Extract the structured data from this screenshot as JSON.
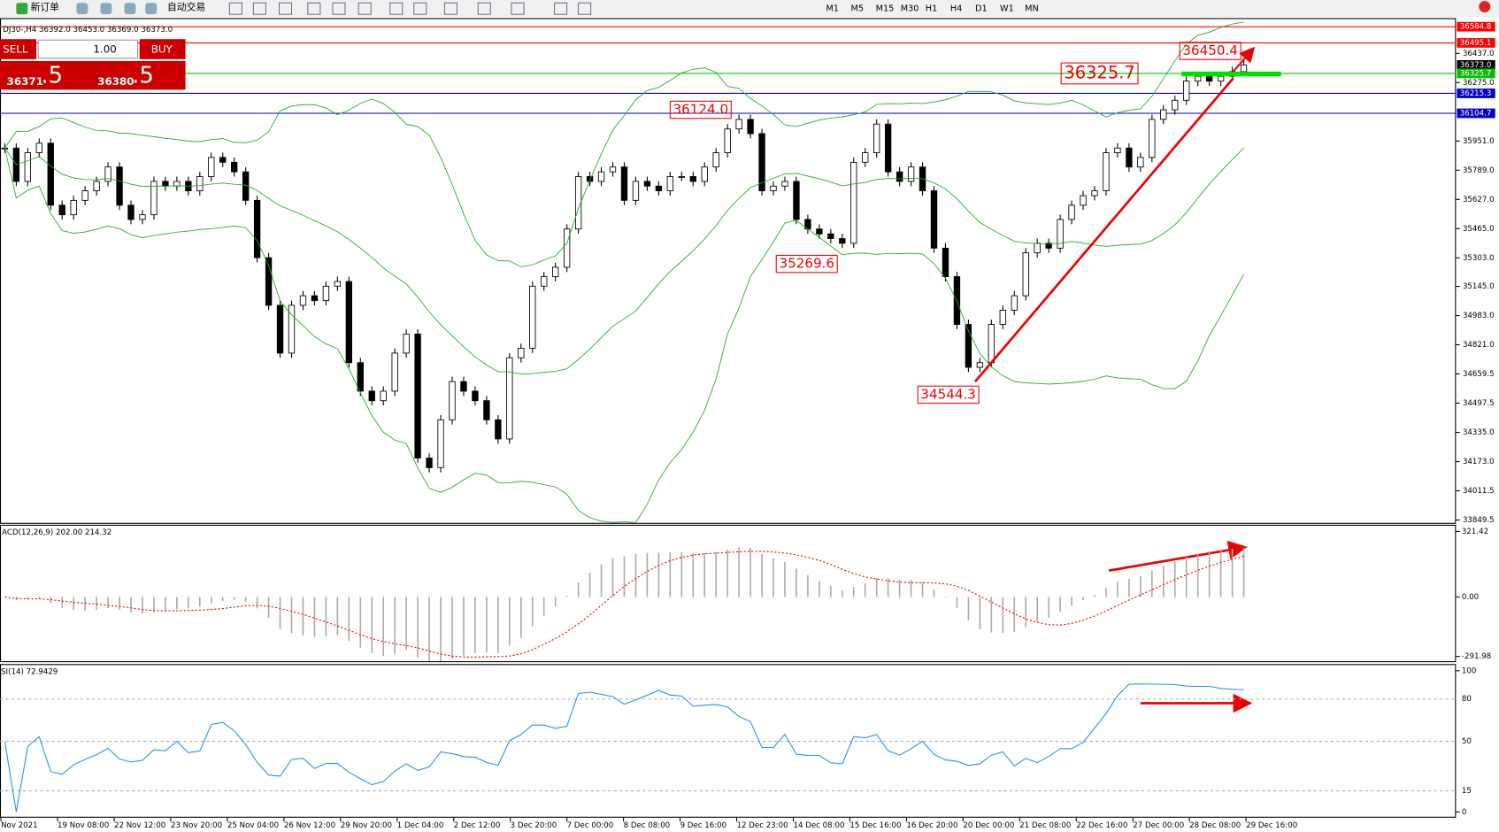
{
  "toolbar": {
    "buttons": [
      "新订单",
      "自动交易"
    ],
    "timeframes": [
      "M1",
      "M5",
      "M15",
      "M30",
      "H1",
      "H4",
      "D1",
      "W1",
      "MN"
    ]
  },
  "trade_panel": {
    "sell": "SELL",
    "lot": "1.00",
    "buy": "BUY",
    "bid_main": "36371",
    "bid_fraction": ".5",
    "ask_main": "36380",
    "ask_fraction": ".5"
  },
  "chart": {
    "info": "DJ30-,H4  36392.0 36453.0 36369.0 36373.0",
    "price_ticks": [
      {
        "value": 36437,
        "label": "36437.0"
      },
      {
        "value": 36275,
        "label": "36275.0"
      },
      {
        "value": 35951,
        "label": "35951.0"
      },
      {
        "value": 35789,
        "label": "35789.0"
      },
      {
        "value": 35627,
        "label": "35627.0"
      },
      {
        "value": 35465,
        "label": "35465.0"
      },
      {
        "value": 35303,
        "label": "35303.0"
      },
      {
        "value": 35145,
        "label": "35145.0"
      },
      {
        "value": 34983,
        "label": "34983.0"
      },
      {
        "value": 34821,
        "label": "34821.0"
      },
      34659.5,
      34497.5,
      {
        "value": 34335,
        "label": "34335.0"
      },
      {
        "value": 34173,
        "label": "34173.0"
      },
      34011.5,
      33849.5
    ],
    "levels": [
      {
        "value": 36584.8,
        "color": "#ff0000"
      },
      {
        "value": 36495.1,
        "color": "#ff0000"
      },
      {
        "value": 36373,
        "label": "36373.0",
        "color": "#000000"
      },
      {
        "value": 36325.7,
        "color": "#00c000"
      },
      {
        "value": 36215.3,
        "color": "#0000c8"
      },
      {
        "value": 36104.7,
        "color": "#0000c8"
      }
    ],
    "annotations": [
      36450.4,
      36325.7,
      {
        "value": 36124,
        "label": "36124.0"
      },
      35269.6,
      34544.3
    ],
    "closes": [
      35912,
      35727,
      35886,
      35939,
      35595,
      35542,
      35622,
      35675,
      35727,
      35807,
      35595,
      35516,
      35542,
      35727,
      35701,
      35727,
      35675,
      35754,
      35860,
      35833,
      35780,
      35622,
      35304,
      35040,
      34775,
      35040,
      35093,
      35066,
      35146,
      35172,
      34722,
      34564,
      34511,
      34564,
      34775,
      34881,
      34193,
      34140,
      34405,
      34617,
      34564,
      34511,
      34405,
      34299,
      34749,
      34802,
      35146,
      35199,
      35251,
      35463,
      35754,
      35727,
      35780,
      35807,
      35622,
      35727,
      35701,
      35675,
      35754,
      35754,
      35727,
      35807,
      35886,
      36018,
      36071,
      35992,
      35675,
      35701,
      35727,
      35516,
      35463,
      35436,
      35410,
      35384,
      35833,
      35886,
      36045,
      35780,
      35727,
      35807,
      35675,
      35357,
      35199,
      34934,
      34696,
      34722,
      34934,
      35013,
      35093,
      35331,
      35384,
      35357,
      35516,
      35595,
      35648,
      35675,
      35886,
      35912,
      35807,
      35860,
      36071,
      36124,
      36177,
      36283,
      36310,
      36283,
      36310,
      36336,
      36373
    ],
    "date_labels": [
      "Nov 2021",
      "19 Nov 08:00",
      "22 Nov 12:00",
      "23 Nov 20:00",
      "25 Nov 04:00",
      "26 Nov 12:00",
      "29 Nov 20:00",
      "1 Dec 04:00",
      "2 Dec 12:00",
      "3 Dec 20:00",
      "7 Dec 00:00",
      "8 Dec 08:00",
      "9 Dec 16:00",
      "12 Dec 23:00",
      "14 Dec 08:00",
      "15 Dec 16:00",
      "16 Dec 20:00",
      "20 Dec 00:00",
      "21 Dec 08:00",
      "22 Dec 16:00",
      "27 Dec 00:00",
      "28 Dec 08:00",
      "29 Dec 16:00"
    ]
  },
  "macd": {
    "label": "ACD(12,26,9) 202.00 214.32",
    "ticks": [
      321.42,
      {
        "value": 0,
        "label": "0.00"
      },
      -291.98
    ]
  },
  "rsi": {
    "label": "SI(14) 72.9429",
    "ticks": [
      100,
      80,
      50,
      15,
      0
    ]
  }
}
